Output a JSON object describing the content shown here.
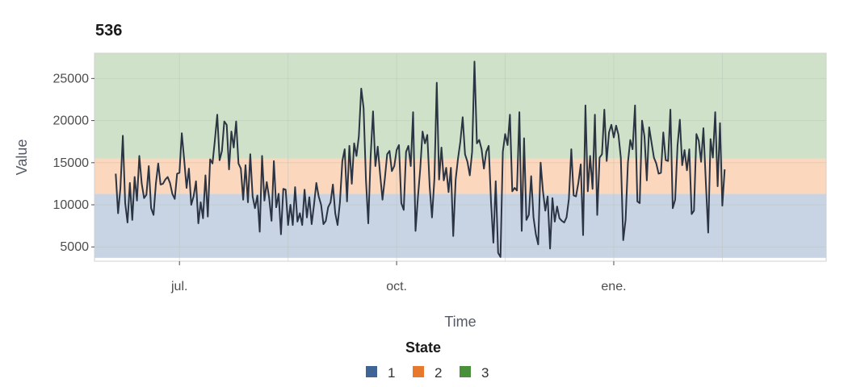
{
  "chart_data": {
    "type": "line",
    "title": "536",
    "xlabel": "Time",
    "ylabel": "Value",
    "ylim": [
      3300,
      28000
    ],
    "x_range": [
      "2023-05-26",
      "2024-03-31"
    ],
    "x_ticks": [
      {
        "date": "2023-07-01",
        "label": "jul."
      },
      {
        "date": "2023-10-01",
        "label": "oct."
      },
      {
        "date": "2024-01-01",
        "label": "ene."
      }
    ],
    "y_ticks": [
      5000,
      10000,
      15000,
      20000,
      25000
    ],
    "grid": true,
    "state_bands": [
      {
        "state": "1",
        "from": 3700,
        "to": 11300,
        "color": "#c8d4e3"
      },
      {
        "state": "2",
        "from": 11300,
        "to": 15500,
        "color": "#fbd7bd"
      },
      {
        "state": "3",
        "from": 15500,
        "to": 28000,
        "color": "#cfe2c9"
      }
    ],
    "legend": {
      "title": "State",
      "position": "bottom",
      "items": [
        {
          "label": "1",
          "color": "#3f6597"
        },
        {
          "label": "2",
          "color": "#e8782b"
        },
        {
          "label": "3",
          "color": "#4a8f3a"
        }
      ]
    },
    "line_color": "#2b3443",
    "series": [
      {
        "start_date": "2023-06-04",
        "step_days": 1,
        "values": [
          13700,
          9000,
          12000,
          18200,
          10200,
          7900,
          12600,
          8200,
          13300,
          10500,
          15800,
          12500,
          10800,
          11200,
          14600,
          9600,
          8800,
          12500,
          14900,
          12400,
          12500,
          13000,
          13300,
          12600,
          11300,
          10700,
          13700,
          13800,
          18500,
          15300,
          12000,
          14300,
          10000,
          11000,
          12800,
          7800,
          10300,
          8400,
          13500,
          8600,
          15400,
          14900,
          17700,
          20700,
          15300,
          16400,
          19900,
          19500,
          14200,
          18700,
          16800,
          19900,
          14900,
          14300,
          10600,
          14700,
          10300,
          16000,
          11000,
          9600,
          11100,
          6800,
          15800,
          10500,
          12700,
          10800,
          8100,
          15200,
          9700,
          11300,
          6500,
          11900,
          11800,
          7600,
          10000,
          7600,
          12100,
          8000,
          9000,
          7600,
          11800,
          8500,
          10900,
          7700,
          10000,
          12600,
          11000,
          10000,
          7700,
          8100,
          9700,
          10300,
          12400,
          9000,
          7600,
          10300,
          15200,
          16600,
          10400,
          17000,
          12500,
          17300,
          15800,
          18100,
          23800,
          21500,
          13000,
          7800,
          15700,
          21100,
          14600,
          16900,
          13700,
          10600,
          13100,
          16000,
          16400,
          14000,
          14600,
          16500,
          17100,
          10200,
          9400,
          16300,
          17000,
          14600,
          21000,
          6900,
          10800,
          14200,
          18700,
          17300,
          18300,
          12200,
          8500,
          13100,
          24500,
          13000,
          16800,
          12900,
          14400,
          11500,
          14400,
          6300,
          13000,
          15500,
          17500,
          20400,
          16000,
          15100,
          13500,
          16300,
          27000,
          17300,
          17700,
          16600,
          14300,
          16300,
          17000,
          10300,
          5500,
          12800,
          4300,
          3800,
          16300,
          18400,
          17100,
          20700,
          11600,
          12000,
          11700,
          21000,
          6900,
          17900,
          8200,
          8800,
          13400,
          8500,
          6500,
          5300,
          15000,
          11600,
          9300,
          11000,
          4800,
          10800,
          8000,
          9800,
          8400,
          8100,
          7900,
          8500,
          10700,
          16600,
          11100,
          11000,
          12600,
          14800,
          6400,
          21800,
          11600,
          15800,
          11900,
          20700,
          8800,
          15600,
          16000,
          21300,
          15200,
          18600,
          19500,
          18000,
          19400,
          18300,
          15600,
          5800,
          8200,
          15000,
          17700,
          16600,
          21800,
          10400,
          10200,
          20000,
          18100,
          12900,
          19200,
          17400,
          15600,
          14900,
          13700,
          13800,
          18600,
          15300,
          15200,
          21300,
          9600,
          10600,
          17000,
          20100,
          14700,
          16500,
          14100,
          16600,
          8900,
          9300,
          18400,
          17600,
          15100,
          19100,
          12800,
          6700,
          17800,
          15600,
          21000,
          12200,
          19700,
          9900,
          14200
        ]
      }
    ]
  }
}
